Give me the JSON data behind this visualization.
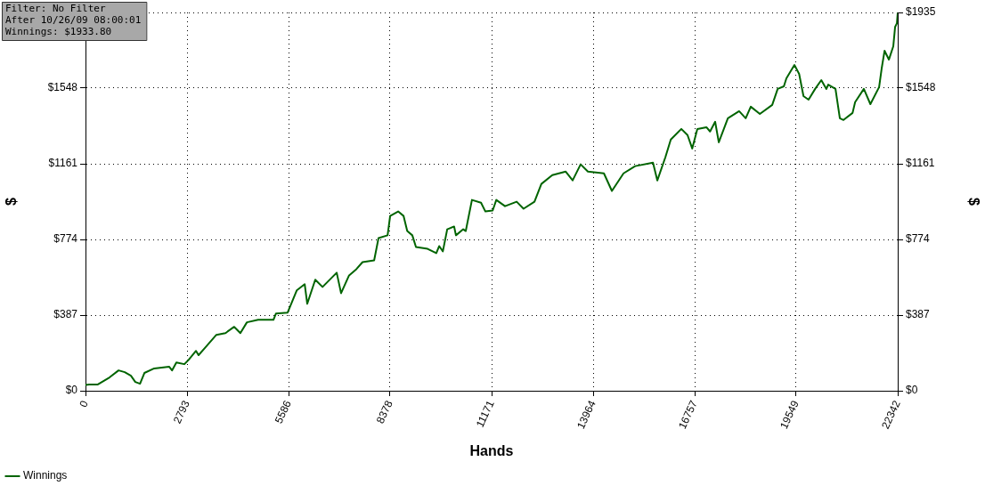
{
  "chart_data": {
    "type": "line",
    "xlabel": "Hands",
    "ylabel": "$",
    "y2label": "$",
    "annotations": [
      "Filter: No Filter",
      "After 10/26/09 08:00:01",
      "Winnings: $1933.80"
    ],
    "xlim": [
      0,
      22342
    ],
    "xticks": [
      0,
      2793,
      5586,
      8378,
      11171,
      13964,
      16757,
      19549,
      22342
    ],
    "ylim": [
      0,
      1935
    ],
    "yticks": [
      {
        "value": 0,
        "label": "$0"
      },
      {
        "value": 387,
        "label": "$387"
      },
      {
        "value": 774,
        "label": "$774"
      },
      {
        "value": 1161,
        "label": "$1161"
      },
      {
        "value": 1548,
        "label": "$1548"
      },
      {
        "value": 1935,
        "label": null
      }
    ],
    "y2lim": [
      0,
      1935
    ],
    "y2ticks": [
      {
        "value": 0,
        "label": "$0"
      },
      {
        "value": 387,
        "label": "$387"
      },
      {
        "value": 774,
        "label": "$774"
      },
      {
        "value": 1161,
        "label": "$1161"
      },
      {
        "value": 1548,
        "label": "$1548"
      },
      {
        "value": 1935,
        "label": "$1935"
      }
    ],
    "grid": true,
    "legend": "bottom left",
    "marker": "none",
    "line_style": "solid",
    "series": [
      {
        "name": "Winnings",
        "color": "#006400",
        "x": [
          0,
          100,
          340,
          660,
          910,
          1080,
          1250,
          1370,
          1500,
          1620,
          1890,
          2300,
          2380,
          2500,
          2720,
          2840,
          3040,
          3110,
          3280,
          3600,
          3850,
          4090,
          4260,
          4440,
          4750,
          5170,
          5240,
          5560,
          5810,
          6030,
          6100,
          6320,
          6520,
          6910,
          7030,
          7250,
          7450,
          7620,
          7940,
          8060,
          8310,
          8380,
          8600,
          8750,
          8850,
          8990,
          9090,
          9410,
          9650,
          9730,
          9830,
          9950,
          10140,
          10190,
          10390,
          10460,
          10630,
          10880,
          11000,
          11200,
          11300,
          11540,
          11860,
          12050,
          12350,
          12540,
          12840,
          13210,
          13400,
          13620,
          13820,
          14260,
          14480,
          14800,
          15120,
          15610,
          15730,
          15950,
          16100,
          16390,
          16560,
          16690,
          16830,
          17080,
          17180,
          17320,
          17420,
          17670,
          17980,
          18160,
          18300,
          18550,
          18890,
          19040,
          19210,
          19280,
          19500,
          19630,
          19750,
          19890,
          20070,
          20240,
          20380,
          20430,
          20630,
          20750,
          20850,
          21100,
          21170,
          21410,
          21590,
          21830,
          21900,
          21980,
          22100,
          22220,
          22270,
          22320,
          22342
        ],
        "values": [
          30,
          32,
          32,
          68,
          104,
          95,
          77,
          45,
          36,
          91,
          114,
          123,
          104,
          145,
          136,
          159,
          204,
          182,
          218,
          286,
          295,
          327,
          295,
          350,
          363,
          363,
          395,
          400,
          513,
          545,
          445,
          568,
          531,
          604,
          499,
          590,
          622,
          658,
          667,
          781,
          795,
          894,
          917,
          894,
          817,
          795,
          735,
          726,
          704,
          740,
          713,
          826,
          840,
          795,
          826,
          817,
          976,
          962,
          917,
          922,
          976,
          944,
          967,
          931,
          967,
          1058,
          1103,
          1121,
          1076,
          1158,
          1121,
          1112,
          1022,
          1112,
          1149,
          1167,
          1076,
          1194,
          1285,
          1339,
          1308,
          1239,
          1339,
          1348,
          1326,
          1376,
          1271,
          1394,
          1430,
          1394,
          1453,
          1416,
          1462,
          1544,
          1557,
          1598,
          1666,
          1621,
          1507,
          1489,
          1544,
          1589,
          1544,
          1566,
          1544,
          1394,
          1385,
          1421,
          1476,
          1544,
          1466,
          1553,
          1648,
          1739,
          1694,
          1762,
          1861,
          1880,
          1934
        ]
      }
    ]
  }
}
